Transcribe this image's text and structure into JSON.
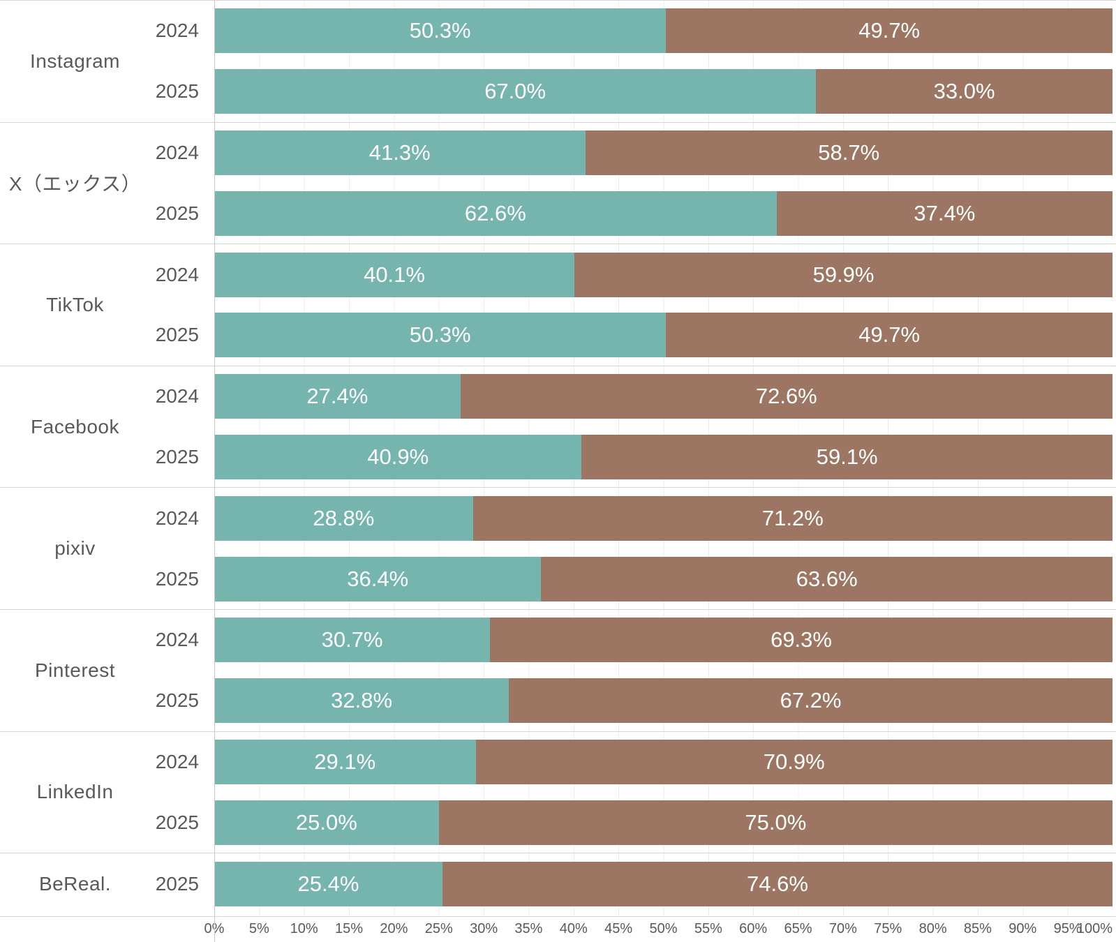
{
  "chart_data": {
    "type": "bar",
    "orientation": "horizontal",
    "stacked_100_percent": true,
    "title": "",
    "legend": "none",
    "colors": {
      "segment1": "#75b5ad",
      "segment2": "#9d7663",
      "bar_label_text": "#ffffff",
      "axis_text": "#595959"
    },
    "groups": [
      {
        "platform": "Instagram",
        "rows": [
          {
            "year": "2024",
            "segments": [
              "50.3%",
              "49.7%"
            ]
          },
          {
            "year": "2025",
            "segments": [
              "67.0%",
              "33.0%"
            ]
          }
        ]
      },
      {
        "platform": "X（エックス）",
        "rows": [
          {
            "year": "2024",
            "segments": [
              "41.3%",
              "58.7%"
            ]
          },
          {
            "year": "2025",
            "segments": [
              "62.6%",
              "37.4%"
            ]
          }
        ]
      },
      {
        "platform": "TikTok",
        "rows": [
          {
            "year": "2024",
            "segments": [
              "40.1%",
              "59.9%"
            ]
          },
          {
            "year": "2025",
            "segments": [
              "50.3%",
              "49.7%"
            ]
          }
        ]
      },
      {
        "platform": "Facebook",
        "rows": [
          {
            "year": "2024",
            "segments": [
              "27.4%",
              "72.6%"
            ]
          },
          {
            "year": "2025",
            "segments": [
              "40.9%",
              "59.1%"
            ]
          }
        ]
      },
      {
        "platform": "pixiv",
        "rows": [
          {
            "year": "2024",
            "segments": [
              "28.8%",
              "71.2%"
            ]
          },
          {
            "year": "2025",
            "segments": [
              "36.4%",
              "63.6%"
            ]
          }
        ]
      },
      {
        "platform": "Pinterest",
        "rows": [
          {
            "year": "2024",
            "segments": [
              "30.7%",
              "69.3%"
            ]
          },
          {
            "year": "2025",
            "segments": [
              "32.8%",
              "67.2%"
            ]
          }
        ]
      },
      {
        "platform": "LinkedIn",
        "rows": [
          {
            "year": "2024",
            "segments": [
              "29.1%",
              "70.9%"
            ]
          },
          {
            "year": "2025",
            "segments": [
              "25.0%",
              "75.0%"
            ]
          }
        ]
      },
      {
        "platform": "BeReal.",
        "rows": [
          {
            "year": "2025",
            "segments": [
              "25.4%",
              "74.6%"
            ]
          }
        ]
      }
    ],
    "x_axis": {
      "min": 0,
      "max": 100,
      "step_percent": 5,
      "grid": true,
      "tick_labels": [
        "0%",
        "5%",
        "10%",
        "15%",
        "20%",
        "25%",
        "30%",
        "35%",
        "40%",
        "45%",
        "50%",
        "55%",
        "60%",
        "65%",
        "70%",
        "75%",
        "80%",
        "85%",
        "90%",
        "95%",
        "100%"
      ]
    }
  }
}
